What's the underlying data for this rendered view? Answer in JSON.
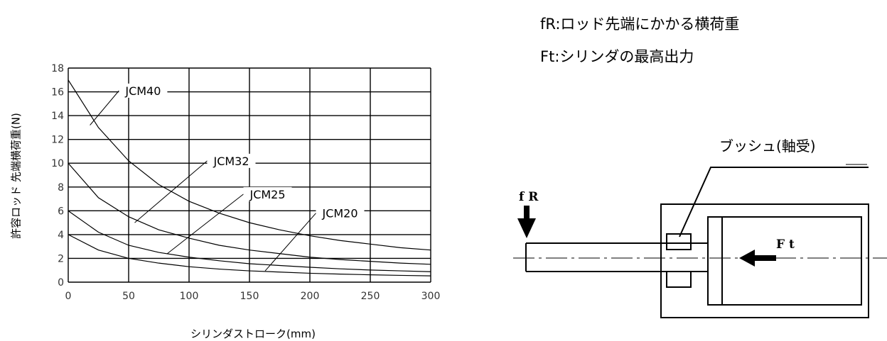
{
  "chart_data": {
    "type": "line",
    "xlabel": "シリンダストローク(mm)",
    "ylabel": "許容ロッド 先端横荷重(N)",
    "xlim": [
      0,
      300
    ],
    "ylim": [
      0,
      18
    ],
    "x_ticks": [
      "0",
      "50",
      "100",
      "150",
      "200",
      "250",
      "300"
    ],
    "y_ticks": [
      "0",
      "2",
      "4",
      "6",
      "8",
      "10",
      "12",
      "14",
      "16",
      "18"
    ],
    "grid": true,
    "series": [
      {
        "name": "JCM40",
        "x": [
          0,
          25,
          50,
          75,
          100,
          125,
          150,
          175,
          200,
          225,
          250,
          275,
          300
        ],
        "y": [
          17,
          13,
          10.2,
          8.2,
          6.8,
          5.8,
          5.0,
          4.4,
          3.9,
          3.5,
          3.2,
          2.9,
          2.7
        ]
      },
      {
        "name": "JCM32",
        "x": [
          0,
          25,
          50,
          75,
          100,
          125,
          150,
          175,
          200,
          225,
          250,
          275,
          300
        ],
        "y": [
          10,
          7.1,
          5.5,
          4.4,
          3.7,
          3.1,
          2.7,
          2.4,
          2.1,
          1.9,
          1.75,
          1.6,
          1.5
        ]
      },
      {
        "name": "JCM25",
        "x": [
          0,
          25,
          50,
          75,
          100,
          125,
          150,
          175,
          200,
          225,
          250,
          275,
          300
        ],
        "y": [
          6,
          4.2,
          3.1,
          2.5,
          2.1,
          1.8,
          1.55,
          1.4,
          1.25,
          1.12,
          1.02,
          0.95,
          0.88
        ]
      },
      {
        "name": "JCM20",
        "x": [
          0,
          25,
          50,
          75,
          100,
          125,
          150,
          175,
          200,
          225,
          250,
          275,
          300
        ],
        "y": [
          4,
          2.7,
          2.0,
          1.6,
          1.3,
          1.1,
          0.95,
          0.85,
          0.75,
          0.68,
          0.62,
          0.57,
          0.53
        ]
      }
    ],
    "annotations": [
      "JCM40",
      "JCM32",
      "JCM25",
      "JCM20"
    ]
  },
  "legend": {
    "fr": "fR:ロッド先端にかかる横荷重",
    "ft": "Ft:シリンダの最高出力"
  },
  "diagram": {
    "bush_label": "ブッシュ(軸受)",
    "fr_label": "f R",
    "ft_label": "F t"
  }
}
